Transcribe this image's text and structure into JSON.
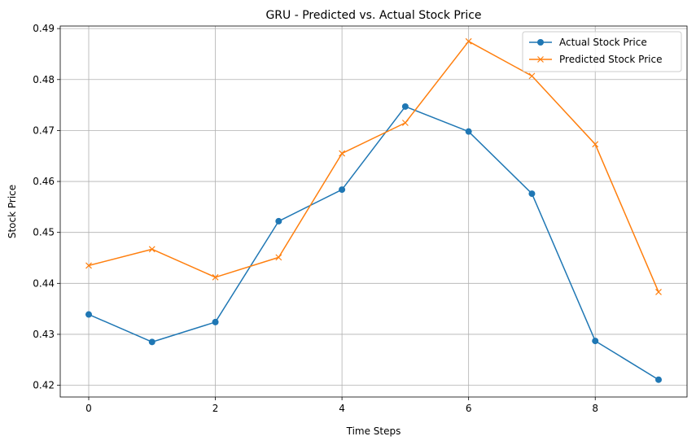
{
  "chart_data": {
    "type": "line",
    "title": "GRU - Predicted vs. Actual Stock Price",
    "xlabel": "Time Steps",
    "ylabel": "Stock Price",
    "x": [
      0,
      1,
      2,
      3,
      4,
      5,
      6,
      7,
      8,
      9
    ],
    "xlim": [
      -0.45,
      9.45
    ],
    "ylim": [
      0.4177,
      0.4905
    ],
    "xticks": [
      0,
      2,
      4,
      6,
      8
    ],
    "yticks": [
      0.42,
      0.43,
      0.44,
      0.45,
      0.46,
      0.47,
      0.48,
      0.49
    ],
    "ytick_labels": [
      "0.42",
      "0.43",
      "0.44",
      "0.45",
      "0.46",
      "0.47",
      "0.48",
      "0.49"
    ],
    "grid": true,
    "legend_position": "top-right",
    "series": [
      {
        "name": "Actual Stock Price",
        "color": "#1f77b4",
        "marker": "circle",
        "values": [
          0.4339,
          0.4285,
          0.4324,
          0.4522,
          0.4584,
          0.4747,
          0.4698,
          0.4576,
          0.4287,
          0.4211
        ]
      },
      {
        "name": "Predicted Stock Price",
        "color": "#ff7f0e",
        "marker": "x",
        "values": [
          0.4435,
          0.4467,
          0.4412,
          0.4451,
          0.4655,
          0.4715,
          0.4875,
          0.4807,
          0.4673,
          0.4383
        ]
      }
    ]
  }
}
